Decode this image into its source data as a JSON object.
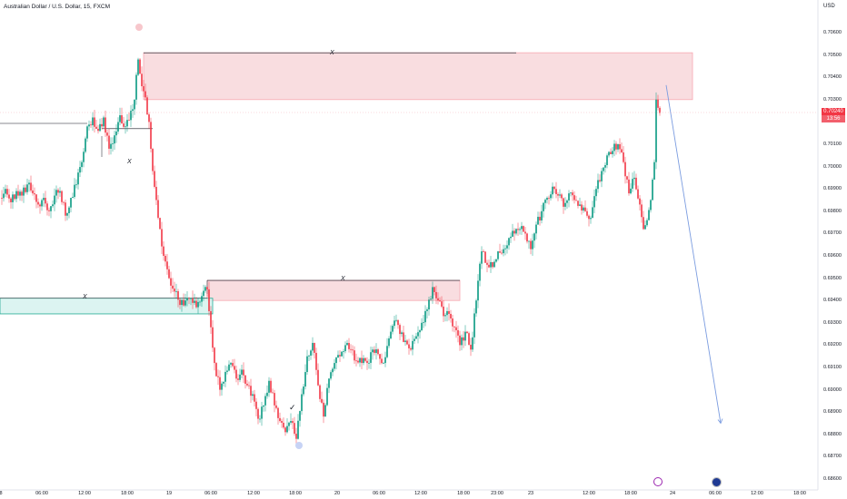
{
  "header": {
    "symbol_title": "Australian Dollar / U.S. Dollar, 15, FXCM",
    "currency": "USD"
  },
  "price_scale": {
    "ticks": [
      "0.70600",
      "0.70500",
      "0.70400",
      "0.70300",
      "0.70100",
      "0.70000",
      "0.69900",
      "0.69800",
      "0.69700",
      "0.69600",
      "0.69500",
      "0.69400",
      "0.69300",
      "0.69200",
      "0.69100",
      "0.69000",
      "0.68900",
      "0.68800",
      "0.68700",
      "0.68600"
    ],
    "current_price": "0.70240",
    "countdown": "13:56"
  },
  "time_axis": {
    "labels": [
      "8",
      "06:00",
      "12:00",
      "18:00",
      "19",
      "06:00",
      "12:00",
      "18:00",
      "20",
      "06:00",
      "12:00",
      "18:00",
      "23:00",
      "23",
      "12:00",
      "18:00",
      "24",
      "06:00",
      "12:00",
      "18:00"
    ]
  },
  "annotations": {
    "x_marks": [
      "X",
      "X",
      "X",
      "X"
    ],
    "check_mark": "✓"
  },
  "chart_data": {
    "type": "candlestick",
    "symbol": "Australian Dollar / U.S. Dollar",
    "interval": "15",
    "source": "FXCM",
    "ylim": [
      0.6859,
      0.7065
    ],
    "current_price": 0.7024,
    "close_path": [
      [
        0,
        0.6986
      ],
      [
        6,
        0.699
      ],
      [
        12,
        0.6984
      ],
      [
        18,
        0.6989
      ],
      [
        24,
        0.6987
      ],
      [
        30,
        0.6992
      ],
      [
        36,
        0.6988
      ],
      [
        42,
        0.6983
      ],
      [
        48,
        0.6986
      ],
      [
        54,
        0.698
      ],
      [
        60,
        0.6987
      ],
      [
        66,
        0.6989
      ],
      [
        72,
        0.6978
      ],
      [
        78,
        0.6986
      ],
      [
        84,
        0.6992
      ],
      [
        90,
        0.7002
      ],
      [
        96,
        0.7018
      ],
      [
        102,
        0.7022
      ],
      [
        108,
        0.7016
      ],
      [
        114,
        0.7022
      ],
      [
        120,
        0.7008
      ],
      [
        126,
        0.7014
      ],
      [
        132,
        0.7023
      ],
      [
        138,
        0.7018
      ],
      [
        144,
        0.7025
      ],
      [
        148,
        0.703
      ],
      [
        152,
        0.7048
      ],
      [
        156,
        0.7036
      ],
      [
        160,
        0.7031
      ],
      [
        164,
        0.702
      ],
      [
        168,
        0.6998
      ],
      [
        172,
        0.6985
      ],
      [
        176,
        0.6972
      ],
      [
        180,
        0.696
      ],
      [
        186,
        0.695
      ],
      [
        192,
        0.6944
      ],
      [
        198,
        0.6938
      ],
      [
        204,
        0.694
      ],
      [
        210,
        0.6941
      ],
      [
        216,
        0.6937
      ],
      [
        222,
        0.6942
      ],
      [
        228,
        0.6945
      ],
      [
        232,
        0.6928
      ],
      [
        236,
        0.6912
      ],
      [
        242,
        0.69
      ],
      [
        248,
        0.6908
      ],
      [
        254,
        0.6912
      ],
      [
        260,
        0.6905
      ],
      [
        266,
        0.6909
      ],
      [
        272,
        0.6902
      ],
      [
        278,
        0.6898
      ],
      [
        284,
        0.6887
      ],
      [
        290,
        0.6893
      ],
      [
        296,
        0.6904
      ],
      [
        302,
        0.6893
      ],
      [
        308,
        0.6886
      ],
      [
        314,
        0.6881
      ],
      [
        320,
        0.6886
      ],
      [
        326,
        0.6878
      ],
      [
        332,
        0.6898
      ],
      [
        338,
        0.6915
      ],
      [
        344,
        0.6921
      ],
      [
        350,
        0.6902
      ],
      [
        356,
        0.6888
      ],
      [
        362,
        0.6905
      ],
      [
        368,
        0.6912
      ],
      [
        374,
        0.6915
      ],
      [
        380,
        0.692
      ],
      [
        386,
        0.6918
      ],
      [
        392,
        0.6913
      ],
      [
        398,
        0.6912
      ],
      [
        404,
        0.6912
      ],
      [
        410,
        0.6918
      ],
      [
        416,
        0.6916
      ],
      [
        422,
        0.6912
      ],
      [
        428,
        0.6923
      ],
      [
        434,
        0.6931
      ],
      [
        440,
        0.6925
      ],
      [
        446,
        0.6922
      ],
      [
        452,
        0.6918
      ],
      [
        458,
        0.6924
      ],
      [
        464,
        0.693
      ],
      [
        470,
        0.6936
      ],
      [
        476,
        0.6946
      ],
      [
        482,
        0.694
      ],
      [
        488,
        0.6933
      ],
      [
        494,
        0.6934
      ],
      [
        500,
        0.6928
      ],
      [
        506,
        0.692
      ],
      [
        512,
        0.6926
      ],
      [
        518,
        0.6918
      ],
      [
        524,
        0.694
      ],
      [
        530,
        0.6962
      ],
      [
        536,
        0.6956
      ],
      [
        542,
        0.6955
      ],
      [
        548,
        0.6962
      ],
      [
        554,
        0.6963
      ],
      [
        560,
        0.6968
      ],
      [
        566,
        0.697
      ],
      [
        572,
        0.6972
      ],
      [
        578,
        0.697
      ],
      [
        584,
        0.6963
      ],
      [
        590,
        0.6974
      ],
      [
        596,
        0.698
      ],
      [
        602,
        0.6986
      ],
      [
        608,
        0.6991
      ],
      [
        614,
        0.6987
      ],
      [
        620,
        0.6982
      ],
      [
        626,
        0.6988
      ],
      [
        632,
        0.6985
      ],
      [
        638,
        0.6983
      ],
      [
        644,
        0.698
      ],
      [
        650,
        0.6977
      ],
      [
        656,
        0.699
      ],
      [
        662,
        0.6998
      ],
      [
        668,
        0.7005
      ],
      [
        674,
        0.7007
      ],
      [
        680,
        0.701
      ],
      [
        686,
        0.7002
      ],
      [
        692,
        0.6988
      ],
      [
        698,
        0.6995
      ],
      [
        704,
        0.6983
      ],
      [
        708,
        0.6972
      ],
      [
        712,
        0.6976
      ],
      [
        716,
        0.6985
      ],
      [
        720,
        0.7002
      ],
      [
        722,
        0.703
      ],
      [
        726,
        0.7024
      ]
    ],
    "zones": [
      {
        "type": "supply",
        "price_top": 0.7051,
        "price_bottom": 0.703,
        "color": "#f8d7da"
      },
      {
        "type": "supply",
        "price_top": 0.6949,
        "price_bottom": 0.694,
        "color": "#f8d7da"
      },
      {
        "type": "demand",
        "price_top": 0.6941,
        "price_bottom": 0.6934,
        "color": "#d6f2ef"
      }
    ],
    "levels": [
      0.7051,
      0.7017,
      0.6949,
      0.6941
    ],
    "projection": {
      "from_price": 0.70365,
      "to_price": 0.6885
    },
    "colors": {
      "up": "#089981",
      "down": "#f23645",
      "zone_red": "#f8d7da",
      "zone_red_border": "#f7a9b2",
      "zone_teal": "#d6f2ef",
      "zone_teal_border": "#22ab94",
      "projection": "#7b9ce0"
    }
  }
}
